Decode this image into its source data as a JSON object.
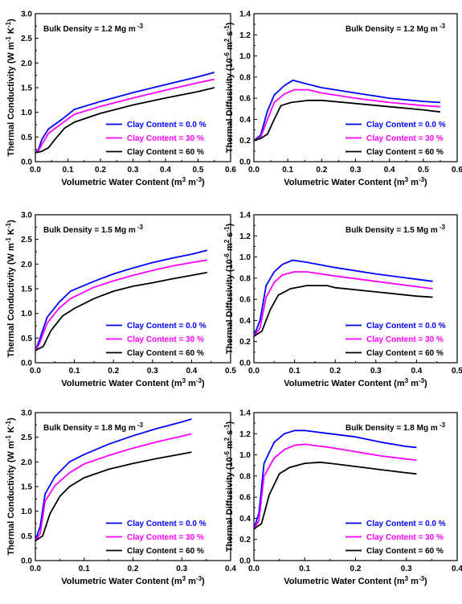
{
  "legend": [
    "Clay Content = 0.0 %",
    "Clay Content = 30 %",
    "Clay Content = 60 %"
  ],
  "colors": {
    "clay_0": "#0000ff",
    "clay_30": "#ff00ff",
    "clay_60": "#000000"
  },
  "chart_data": [
    {
      "type": "line",
      "annotation": "Bulk Density = 1.2 Mg m",
      "annotation_sup": "-3",
      "xlabel": "Volumetric Water Content (m",
      "xlabel_sup": [
        "3",
        "-3"
      ],
      "xlabel_mid": " m",
      "ylabel": "Thermal Conductivity (W m",
      "ylabel_sup": [
        "-1",
        "-1"
      ],
      "ylabel_mid": " K",
      "xlim": [
        0,
        0.6
      ],
      "ylim": [
        0,
        3.0
      ],
      "xticks": [
        "0.0",
        "0.1",
        "0.2",
        "0.3",
        "0.4",
        "0.5",
        "0.6"
      ],
      "yticks": [
        "0.0",
        "0.5",
        "1.0",
        "1.5",
        "2.0",
        "2.5",
        "3.0"
      ],
      "legend_pos": "bottom-right",
      "series": [
        {
          "name": "Clay Content = 0.0 %",
          "x": [
            0,
            0.01,
            0.02,
            0.04,
            0.08,
            0.12,
            0.2,
            0.3,
            0.4,
            0.5,
            0.55
          ],
          "y": [
            0.18,
            0.25,
            0.45,
            0.66,
            0.85,
            1.06,
            1.22,
            1.4,
            1.56,
            1.72,
            1.81
          ]
        },
        {
          "name": "Clay Content = 30 %",
          "x": [
            0,
            0.01,
            0.02,
            0.04,
            0.08,
            0.12,
            0.2,
            0.3,
            0.4,
            0.5,
            0.55
          ],
          "y": [
            0.18,
            0.22,
            0.35,
            0.57,
            0.77,
            0.96,
            1.12,
            1.29,
            1.45,
            1.6,
            1.67
          ]
        },
        {
          "name": "Clay Content = 60 %",
          "x": [
            0,
            0.02,
            0.04,
            0.06,
            0.09,
            0.12,
            0.2,
            0.3,
            0.4,
            0.5,
            0.55
          ],
          "y": [
            0.18,
            0.21,
            0.28,
            0.45,
            0.68,
            0.8,
            0.98,
            1.15,
            1.29,
            1.42,
            1.5
          ]
        }
      ]
    },
    {
      "type": "line",
      "annotation": "Bulk Density = 1.2 Mg m",
      "annotation_sup": "-3",
      "xlabel": "Volumetric Water Content (m",
      "xlabel_sup": [
        "3",
        "-3"
      ],
      "xlabel_mid": " m",
      "ylabel": "Thermal Diffusivity (10",
      "ylabel_sup": [
        "-6",
        "-1"
      ],
      "ylabel_mid": "m",
      "ylabel_sup2": "2",
      "ylabel_end": " s",
      "xlim": [
        0,
        0.6
      ],
      "ylim": [
        0,
        1.4
      ],
      "xticks": [
        "0.0",
        "0.1",
        "0.2",
        "0.3",
        "0.4",
        "0.5",
        "0.6"
      ],
      "yticks": [
        "0.0",
        "0.2",
        "0.4",
        "0.6",
        "0.8",
        "1.0",
        "1.2",
        "1.4"
      ],
      "legend_pos": "bottom-right",
      "series": [
        {
          "name": "Clay Content = 0.0 %",
          "x": [
            0,
            0.02,
            0.04,
            0.06,
            0.09,
            0.115,
            0.15,
            0.2,
            0.3,
            0.4,
            0.5,
            0.55
          ],
          "y": [
            0.2,
            0.25,
            0.48,
            0.63,
            0.72,
            0.77,
            0.74,
            0.7,
            0.65,
            0.6,
            0.57,
            0.56
          ]
        },
        {
          "name": "Clay Content = 30 %",
          "x": [
            0,
            0.02,
            0.04,
            0.06,
            0.09,
            0.12,
            0.16,
            0.2,
            0.3,
            0.4,
            0.5,
            0.55
          ],
          "y": [
            0.2,
            0.23,
            0.4,
            0.56,
            0.64,
            0.68,
            0.68,
            0.65,
            0.6,
            0.56,
            0.53,
            0.52
          ]
        },
        {
          "name": "Clay Content = 60 %",
          "x": [
            0,
            0.02,
            0.04,
            0.06,
            0.08,
            0.11,
            0.16,
            0.2,
            0.3,
            0.4,
            0.5,
            0.55
          ],
          "y": [
            0.2,
            0.22,
            0.26,
            0.4,
            0.53,
            0.56,
            0.58,
            0.58,
            0.55,
            0.52,
            0.49,
            0.47
          ]
        }
      ]
    },
    {
      "type": "line",
      "annotation": "Bulk Density = 1.5 Mg m",
      "annotation_sup": "-3",
      "xlabel": "Volumetric Water Content (m",
      "xlabel_sup": [
        "3",
        "-3"
      ],
      "xlabel_mid": " m",
      "ylabel": "Thermal Conductivity (W m",
      "ylabel_sup": [
        "-1",
        "-1"
      ],
      "ylabel_mid": " K",
      "xlim": [
        0,
        0.5
      ],
      "ylim": [
        0,
        3.0
      ],
      "xticks": [
        "0.0",
        "0.1",
        "0.2",
        "0.3",
        "0.4",
        "0.5"
      ],
      "yticks": [
        "0.0",
        "0.5",
        "1.0",
        "1.5",
        "2.0",
        "2.5",
        "3.0"
      ],
      "legend_pos": "bottom-right",
      "series": [
        {
          "name": "Clay Content = 0.0 %",
          "x": [
            0,
            0.01,
            0.03,
            0.06,
            0.09,
            0.15,
            0.2,
            0.25,
            0.3,
            0.35,
            0.4,
            0.44
          ],
          "y": [
            0.25,
            0.45,
            0.92,
            1.22,
            1.45,
            1.65,
            1.8,
            1.92,
            2.03,
            2.12,
            2.2,
            2.28
          ]
        },
        {
          "name": "Clay Content = 30 %",
          "x": [
            0,
            0.01,
            0.03,
            0.06,
            0.09,
            0.15,
            0.2,
            0.25,
            0.3,
            0.35,
            0.4,
            0.44
          ],
          "y": [
            0.25,
            0.38,
            0.8,
            1.1,
            1.3,
            1.53,
            1.66,
            1.77,
            1.87,
            1.96,
            2.03,
            2.08
          ]
        },
        {
          "name": "Clay Content = 60 %",
          "x": [
            0,
            0.02,
            0.04,
            0.07,
            0.1,
            0.15,
            0.2,
            0.25,
            0.3,
            0.35,
            0.4,
            0.44
          ],
          "y": [
            0.25,
            0.33,
            0.65,
            0.95,
            1.1,
            1.3,
            1.45,
            1.55,
            1.62,
            1.7,
            1.77,
            1.83
          ]
        }
      ]
    },
    {
      "type": "line",
      "annotation": "Bulk Density = 1.5 Mg m",
      "annotation_sup": "-3",
      "xlabel": "Volumetric Water Content (m",
      "xlabel_sup": [
        "3",
        "-3"
      ],
      "xlabel_mid": " m",
      "ylabel": "Thermal Diffusivity (10",
      "ylabel_sup": [
        "-6",
        "-1"
      ],
      "ylabel_mid": "m",
      "ylabel_sup2": "2",
      "ylabel_end": " s",
      "xlim": [
        0,
        0.5
      ],
      "ylim": [
        0,
        1.4
      ],
      "xticks": [
        "0.0",
        "0.1",
        "0.2",
        "0.3",
        "0.4",
        "0.5"
      ],
      "yticks": [
        "0.0",
        "0.2",
        "0.4",
        "0.6",
        "0.8",
        "1.0",
        "1.2",
        "1.4"
      ],
      "legend_pos": "bottom-right",
      "series": [
        {
          "name": "Clay Content = 0.0 %",
          "x": [
            0,
            0.015,
            0.03,
            0.05,
            0.07,
            0.095,
            0.13,
            0.2,
            0.3,
            0.4,
            0.44
          ],
          "y": [
            0.25,
            0.4,
            0.73,
            0.86,
            0.93,
            0.97,
            0.95,
            0.9,
            0.84,
            0.79,
            0.77
          ]
        },
        {
          "name": "Clay Content = 30 %",
          "x": [
            0,
            0.015,
            0.03,
            0.05,
            0.07,
            0.1,
            0.13,
            0.2,
            0.3,
            0.4,
            0.44
          ],
          "y": [
            0.25,
            0.33,
            0.62,
            0.76,
            0.83,
            0.86,
            0.86,
            0.82,
            0.77,
            0.72,
            0.7
          ]
        },
        {
          "name": "Clay Content = 60 %",
          "x": [
            0,
            0.02,
            0.04,
            0.06,
            0.09,
            0.13,
            0.18,
            0.2,
            0.3,
            0.4,
            0.44
          ],
          "y": [
            0.25,
            0.3,
            0.5,
            0.64,
            0.7,
            0.73,
            0.73,
            0.71,
            0.67,
            0.63,
            0.62
          ]
        }
      ]
    },
    {
      "type": "line",
      "annotation": "Bulk Density = 1.8 Mg m",
      "annotation_sup": "-3",
      "xlabel": "Volumetric Water Content (m",
      "xlabel_sup": [
        "3",
        "-3"
      ],
      "xlabel_mid": " m",
      "ylabel": "Thermal Conductivity (W m",
      "ylabel_sup": [
        "-1",
        "-1"
      ],
      "ylabel_mid": " K",
      "xlim": [
        0,
        0.4
      ],
      "ylim": [
        0,
        3.0
      ],
      "xticks": [
        "0.0",
        "0.1",
        "0.2",
        "0.3",
        "0.4"
      ],
      "yticks": [
        "0.0",
        "0.5",
        "1.0",
        "1.5",
        "2.0",
        "2.5",
        "3.0"
      ],
      "legend_pos": "bottom-right",
      "series": [
        {
          "name": "Clay Content = 0.0 %",
          "x": [
            0,
            0.01,
            0.02,
            0.04,
            0.07,
            0.1,
            0.15,
            0.2,
            0.25,
            0.3,
            0.32
          ],
          "y": [
            0.4,
            0.7,
            1.35,
            1.7,
            2.0,
            2.15,
            2.36,
            2.53,
            2.68,
            2.81,
            2.87
          ]
        },
        {
          "name": "Clay Content = 30 %",
          "x": [
            0,
            0.01,
            0.02,
            0.04,
            0.07,
            0.1,
            0.15,
            0.2,
            0.25,
            0.3,
            0.32
          ],
          "y": [
            0.4,
            0.55,
            1.2,
            1.52,
            1.78,
            1.96,
            2.13,
            2.28,
            2.41,
            2.52,
            2.57
          ]
        },
        {
          "name": "Clay Content = 60 %",
          "x": [
            0,
            0.015,
            0.03,
            0.05,
            0.07,
            0.1,
            0.15,
            0.2,
            0.25,
            0.3,
            0.32
          ],
          "y": [
            0.4,
            0.5,
            0.95,
            1.3,
            1.5,
            1.68,
            1.85,
            1.97,
            2.07,
            2.16,
            2.2
          ]
        }
      ]
    },
    {
      "type": "line",
      "annotation": "Bulk Density = 1.8 Mg m",
      "annotation_sup": "-3",
      "xlabel": "Volumetric Water Content (m",
      "xlabel_sup": [
        "3",
        "-3"
      ],
      "xlabel_mid": " m",
      "ylabel": "Thermal Diffusivity (10",
      "ylabel_sup": [
        "-6",
        "-1"
      ],
      "ylabel_mid": "m",
      "ylabel_sup2": "2",
      "ylabel_end": " s",
      "xlim": [
        0,
        0.4
      ],
      "ylim": [
        0,
        1.4
      ],
      "xticks": [
        "0.0",
        "0.1",
        "0.2",
        "0.3",
        "0.4"
      ],
      "yticks": [
        "0.0",
        "0.2",
        "0.4",
        "0.6",
        "0.8",
        "1.0",
        "1.2",
        "1.4"
      ],
      "legend_pos": "bottom-right",
      "series": [
        {
          "name": "Clay Content = 0.0 %",
          "x": [
            0,
            0.01,
            0.02,
            0.04,
            0.06,
            0.08,
            0.1,
            0.15,
            0.2,
            0.25,
            0.3,
            0.32
          ],
          "y": [
            0.3,
            0.45,
            0.92,
            1.12,
            1.2,
            1.23,
            1.23,
            1.2,
            1.17,
            1.12,
            1.08,
            1.07
          ]
        },
        {
          "name": "Clay Content = 30 %",
          "x": [
            0,
            0.01,
            0.02,
            0.04,
            0.06,
            0.08,
            0.1,
            0.15,
            0.2,
            0.25,
            0.3,
            0.32
          ],
          "y": [
            0.3,
            0.38,
            0.8,
            0.97,
            1.05,
            1.09,
            1.1,
            1.07,
            1.03,
            0.99,
            0.96,
            0.95
          ]
        },
        {
          "name": "Clay Content = 60 %",
          "x": [
            0,
            0.015,
            0.03,
            0.05,
            0.07,
            0.1,
            0.13,
            0.15,
            0.2,
            0.25,
            0.3,
            0.32
          ],
          "y": [
            0.3,
            0.35,
            0.62,
            0.82,
            0.88,
            0.92,
            0.93,
            0.92,
            0.89,
            0.86,
            0.83,
            0.82
          ]
        }
      ]
    }
  ]
}
